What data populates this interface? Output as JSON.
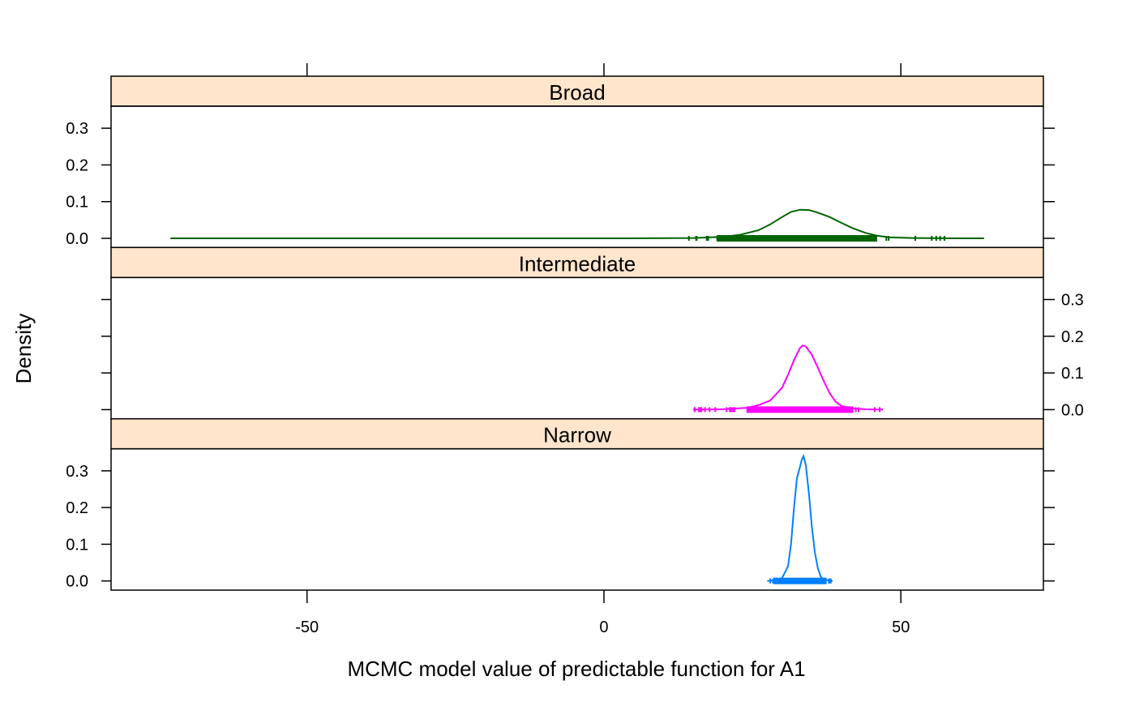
{
  "chart_data": {
    "type": "density",
    "xlabel": "MCMC model value of predictable function for A1",
    "ylabel": "Density",
    "xlim": [
      -83,
      74
    ],
    "ylim": [
      -0.025,
      0.36
    ],
    "x_ticks": [
      -50,
      0,
      50
    ],
    "x_tick_labels": [
      "-50",
      "0",
      "50"
    ],
    "y_ticks": [
      0.0,
      0.1,
      0.2,
      0.3
    ],
    "y_tick_labels": [
      "0.0",
      "0.1",
      "0.2",
      "0.3"
    ],
    "strip_color": "#ffe5cc",
    "panels": [
      {
        "name": "Broad",
        "color": "#006400",
        "curve": [
          [
            -73,
            0
          ],
          [
            -40,
            0
          ],
          [
            -10,
            0
          ],
          [
            5,
            0
          ],
          [
            15,
            0.001
          ],
          [
            20,
            0.004
          ],
          [
            23,
            0.01
          ],
          [
            26,
            0.022
          ],
          [
            28,
            0.038
          ],
          [
            30,
            0.058
          ],
          [
            31.5,
            0.072
          ],
          [
            33,
            0.078
          ],
          [
            34.5,
            0.077
          ],
          [
            36,
            0.07
          ],
          [
            38,
            0.058
          ],
          [
            40,
            0.042
          ],
          [
            42,
            0.027
          ],
          [
            44,
            0.015
          ],
          [
            46,
            0.007
          ],
          [
            48,
            0.003
          ],
          [
            52,
            0.001
          ],
          [
            58,
            0
          ],
          [
            64,
            0
          ]
        ],
        "rug_from": 12,
        "rug_to": 58,
        "rug_dense_from": 19,
        "rug_dense_to": 46
      },
      {
        "name": "Intermediate",
        "color": "#ff00ff",
        "curve": [
          [
            15,
            0
          ],
          [
            20,
            0.001
          ],
          [
            24,
            0.005
          ],
          [
            26,
            0.012
          ],
          [
            28,
            0.025
          ],
          [
            30,
            0.06
          ],
          [
            31,
            0.095
          ],
          [
            32,
            0.135
          ],
          [
            33,
            0.168
          ],
          [
            33.5,
            0.175
          ],
          [
            34,
            0.172
          ],
          [
            35,
            0.15
          ],
          [
            36,
            0.115
          ],
          [
            37,
            0.078
          ],
          [
            38,
            0.045
          ],
          [
            39,
            0.022
          ],
          [
            40,
            0.01
          ],
          [
            42,
            0.003
          ],
          [
            44,
            0.001
          ],
          [
            47,
            0
          ]
        ],
        "rug_from": 15,
        "rug_to": 47,
        "rug_dense_from": 24,
        "rug_dense_to": 42
      },
      {
        "name": "Narrow",
        "color": "#0080ff",
        "curve": [
          [
            27.5,
            0
          ],
          [
            29,
            0.002
          ],
          [
            30,
            0.008
          ],
          [
            31,
            0.04
          ],
          [
            31.5,
            0.1
          ],
          [
            32,
            0.2
          ],
          [
            32.5,
            0.28
          ],
          [
            33,
            0.31
          ],
          [
            33.3,
            0.33
          ],
          [
            33.6,
            0.34
          ],
          [
            34,
            0.315
          ],
          [
            34.5,
            0.24
          ],
          [
            35,
            0.15
          ],
          [
            35.5,
            0.08
          ],
          [
            36,
            0.035
          ],
          [
            36.5,
            0.012
          ],
          [
            37,
            0.004
          ],
          [
            38,
            0.001
          ],
          [
            38.5,
            0
          ]
        ],
        "rug_from": 27.5,
        "rug_to": 38.5,
        "rug_dense_from": 28.5,
        "rug_dense_to": 37.5
      }
    ]
  }
}
